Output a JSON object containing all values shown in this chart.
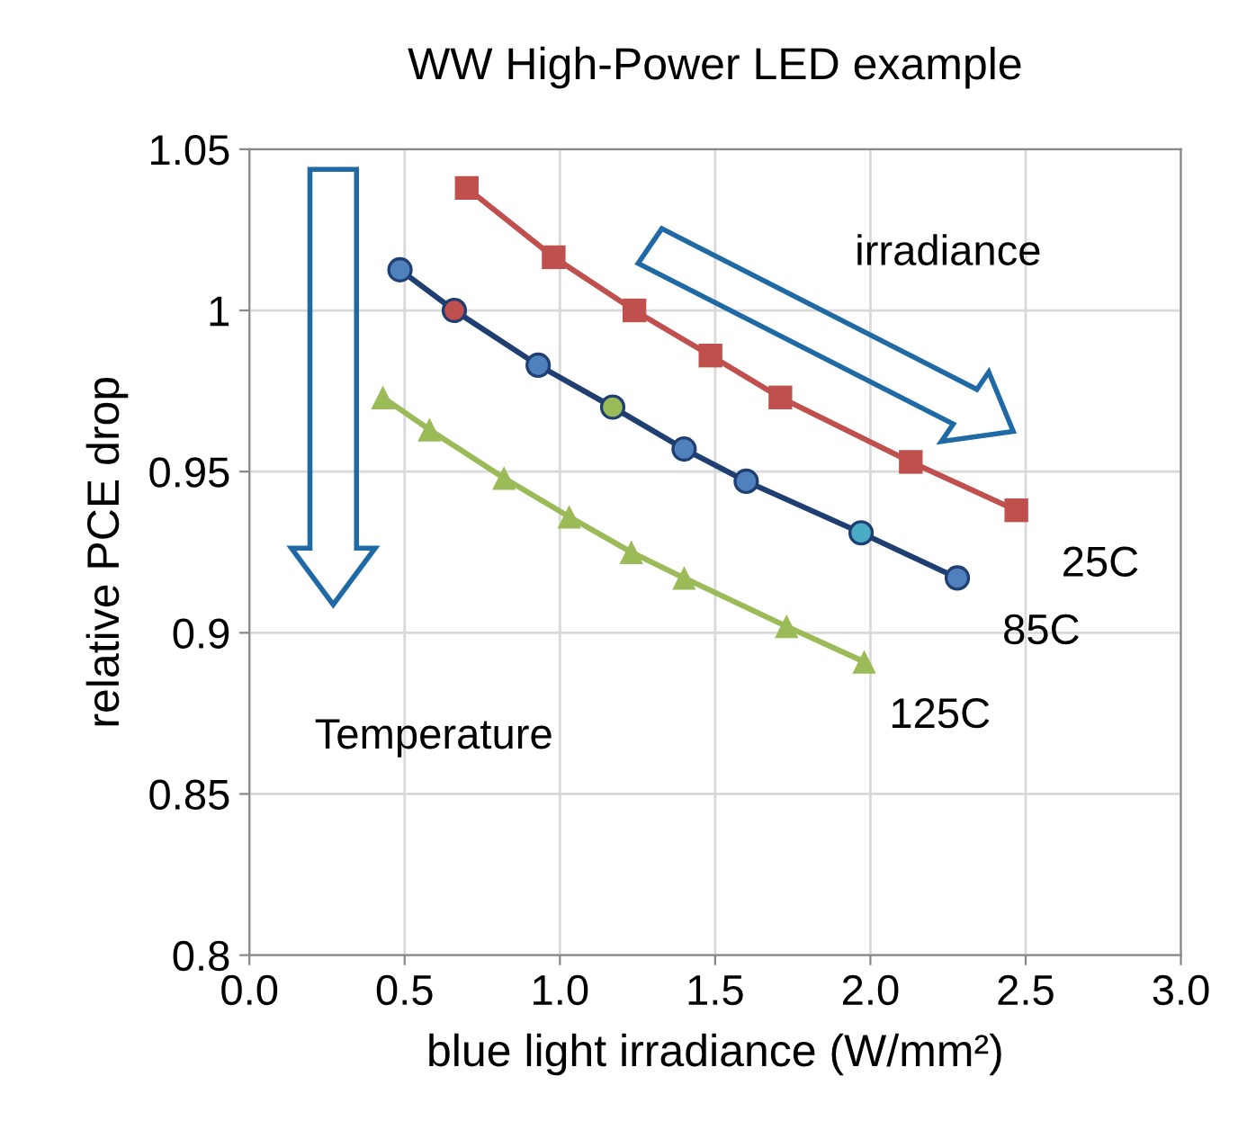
{
  "chart_data": {
    "type": "line",
    "title": "WW High-Power LED example",
    "xlabel": "blue light irradiance (W/mm²)",
    "ylabel": "relative PCE drop",
    "xlim": [
      0.0,
      3.0
    ],
    "xticks": [
      {
        "value": 0,
        "label": "0.0"
      },
      0.5,
      {
        "value": 1,
        "label": "1.0"
      },
      1.5,
      {
        "value": 2,
        "label": "2.0"
      },
      2.5,
      {
        "value": 3,
        "label": "3.0"
      }
    ],
    "ylim": [
      0.8,
      1.05
    ],
    "yticks": [
      0.8,
      0.85,
      0.9,
      0.95,
      1,
      1.05
    ],
    "grid": true,
    "legend": false,
    "series": [
      {
        "name": "25C",
        "color": "#c0504d",
        "marker": "square",
        "x": [
          0.7,
          0.98,
          1.24,
          1.485,
          1.71,
          2.13,
          2.47
        ],
        "values": [
          1.038,
          1.0165,
          1.0,
          0.986,
          0.973,
          0.953,
          0.938
        ]
      },
      {
        "name": "85C",
        "color": "#1f3f73",
        "marker": "circle",
        "colors": [
          "#4f81bd",
          "#c0504d",
          "#4f81bd",
          "#9bbb59",
          "#4f81bd",
          "#4f81bd",
          "#4bacc6",
          "#4f81bd"
        ],
        "x": [
          0.485,
          0.66,
          0.93,
          1.17,
          1.4,
          1.6,
          1.97,
          2.28
        ],
        "values": [
          1.0126,
          1.0,
          0.983,
          0.97,
          0.957,
          0.947,
          0.931,
          0.917
        ]
      },
      {
        "name": "125C",
        "color": "#9bbb59",
        "marker": "triangle",
        "x": [
          0.43,
          0.58,
          0.82,
          1.03,
          1.23,
          1.4,
          1.73,
          1.98
        ],
        "values": [
          0.973,
          0.963,
          0.948,
          0.936,
          0.925,
          0.917,
          0.902,
          0.891
        ]
      }
    ],
    "annotations": [
      "irradiance",
      "Temperature"
    ]
  }
}
